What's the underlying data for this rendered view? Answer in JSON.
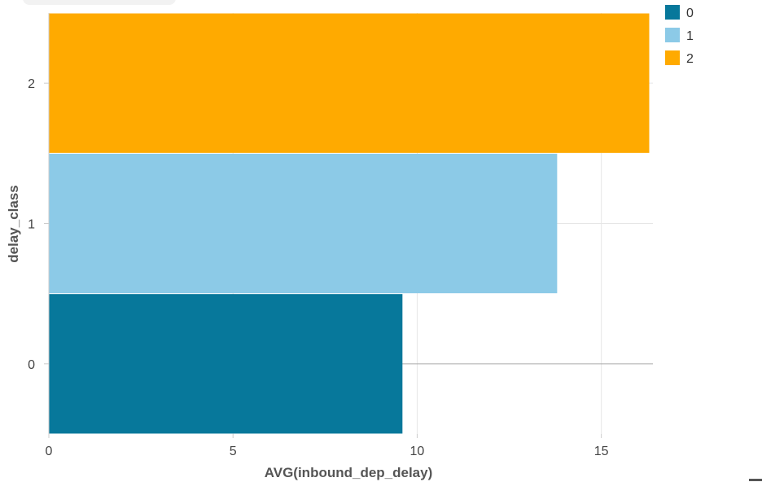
{
  "chart_data": {
    "type": "bar",
    "orientation": "horizontal",
    "xlabel": "AVG(inbound_dep_delay)",
    "ylabel": "delay_class",
    "xlim": [
      0,
      16.4
    ],
    "x_ticks": [
      "0",
      "5",
      "10",
      "15"
    ],
    "x_tick_values": [
      0,
      5,
      10,
      15
    ],
    "grid": true,
    "legend_position": "top-right",
    "categories": [
      "0",
      "1",
      "2"
    ],
    "values": [
      9.6,
      13.8,
      16.3
    ],
    "colors": [
      "#07789b",
      "#8ccae7",
      "#ffaa00"
    ],
    "legend": [
      {
        "label": "0",
        "color": "#07789b"
      },
      {
        "label": "1",
        "color": "#8ccae7"
      },
      {
        "label": "2",
        "color": "#ffaa00"
      }
    ]
  }
}
